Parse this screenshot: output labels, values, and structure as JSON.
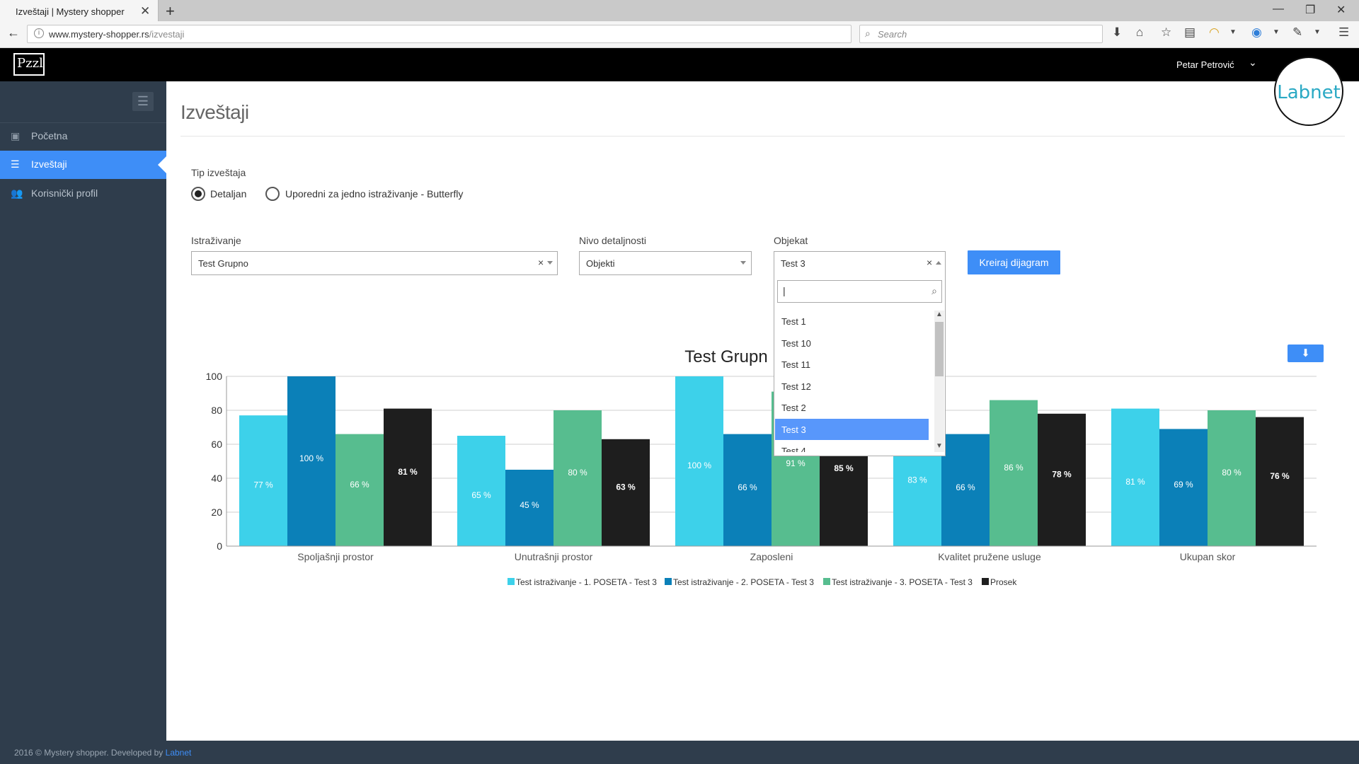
{
  "browser": {
    "tab_title": "Izveštaji | Mystery shopper",
    "url_host": "www.mystery-shopper.rs",
    "url_path": "/izvestaji",
    "search_placeholder": "Search"
  },
  "header": {
    "user_name": "Petar Petrović",
    "logo_text": "Pzzl",
    "badge_text": "Labnet"
  },
  "sidebar": {
    "items": [
      {
        "label": "Početna",
        "icon": "briefcase-icon",
        "active": false
      },
      {
        "label": "Izveštaji",
        "icon": "list-icon",
        "active": true
      },
      {
        "label": "Korisnički profil",
        "icon": "users-icon",
        "active": false
      }
    ]
  },
  "main": {
    "page_title": "Izveštaji",
    "report_type_label": "Tip izveštaja",
    "radio_detailed": "Detaljan",
    "radio_butterfly": "Uporedni za jedno istraživanje - Butterfly",
    "research_label": "Istraživanje",
    "research_value": "Test Grupno",
    "level_label": "Nivo detaljnosti",
    "level_value": "Objekti",
    "object_label": "Objekat",
    "object_value": "Test 3",
    "create_button": "Kreiraj dijagram",
    "dropdown_search_value": "",
    "dropdown_options": [
      "Test 1",
      "Test 10",
      "Test 11",
      "Test 12",
      "Test 2",
      "Test 3",
      "Test 4"
    ],
    "dropdown_selected": "Test 3"
  },
  "chart_data": {
    "type": "bar",
    "title": "Test Grupn",
    "ylim": [
      0,
      100
    ],
    "yticks": [
      0,
      20,
      40,
      60,
      80,
      100
    ],
    "categories": [
      "Spoljašnji prostor",
      "Unutrašnji prostor",
      "Zaposleni",
      "Kvalitet pružene usluge",
      "Ukupan skor"
    ],
    "series": [
      {
        "name": "Test istraživanje - 1. POSETA - Test 3",
        "color": "#3dd1ea",
        "values": [
          77,
          65,
          100,
          83,
          81
        ]
      },
      {
        "name": "Test istraživanje - 2. POSETA - Test 3",
        "color": "#0b80b8",
        "values": [
          100,
          45,
          66,
          66,
          69
        ]
      },
      {
        "name": "Test istraživanje - 3. POSETA - Test 3",
        "color": "#57bd8f",
        "values": [
          66,
          80,
          91,
          86,
          80
        ]
      },
      {
        "name": "Prosek",
        "color": "#1e1e1e",
        "values": [
          81,
          63,
          85,
          78,
          76
        ]
      }
    ],
    "value_suffix": " %",
    "legend_position": "bottom",
    "grid": true
  },
  "footer": {
    "text": "2016 © Mystery shopper. Developed by ",
    "link": "Labnet"
  }
}
